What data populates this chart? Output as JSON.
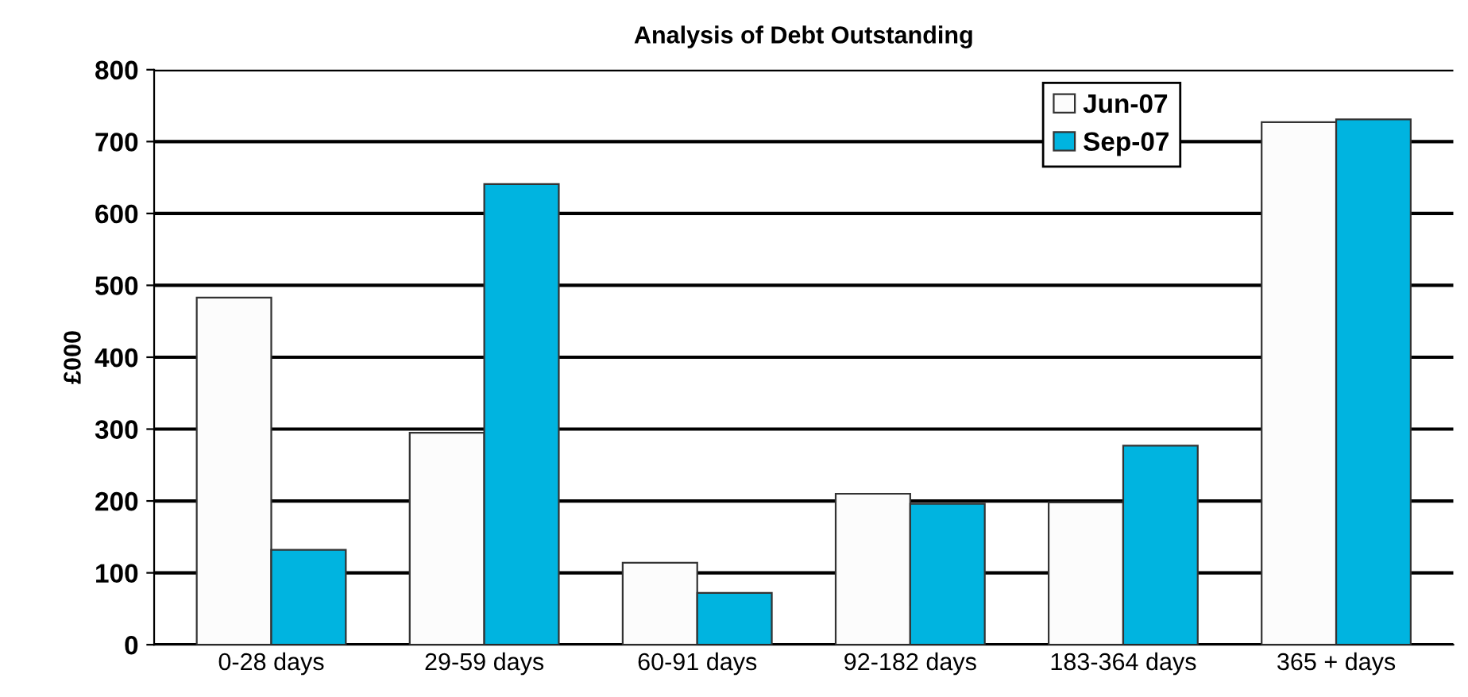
{
  "chart_data": {
    "type": "bar",
    "title": "Analysis of Debt Outstanding",
    "ylabel": "£000",
    "categories": [
      "0-28 days",
      "29-59 days",
      "60-91 days",
      "92-182 days",
      "183-364 days",
      "365 + days"
    ],
    "series": [
      {
        "name": "Jun-07",
        "color": "#fcfcfc",
        "values": [
          483,
          295,
          114,
          210,
          198,
          727
        ]
      },
      {
        "name": "Sep-07",
        "color": "#00b4e0",
        "values": [
          132,
          641,
          72,
          196,
          277,
          731
        ]
      }
    ],
    "ylim": [
      0,
      800
    ],
    "yticks": [
      0,
      100,
      200,
      300,
      400,
      500,
      600,
      700,
      800
    ],
    "grid": "y",
    "legend": "top right"
  }
}
